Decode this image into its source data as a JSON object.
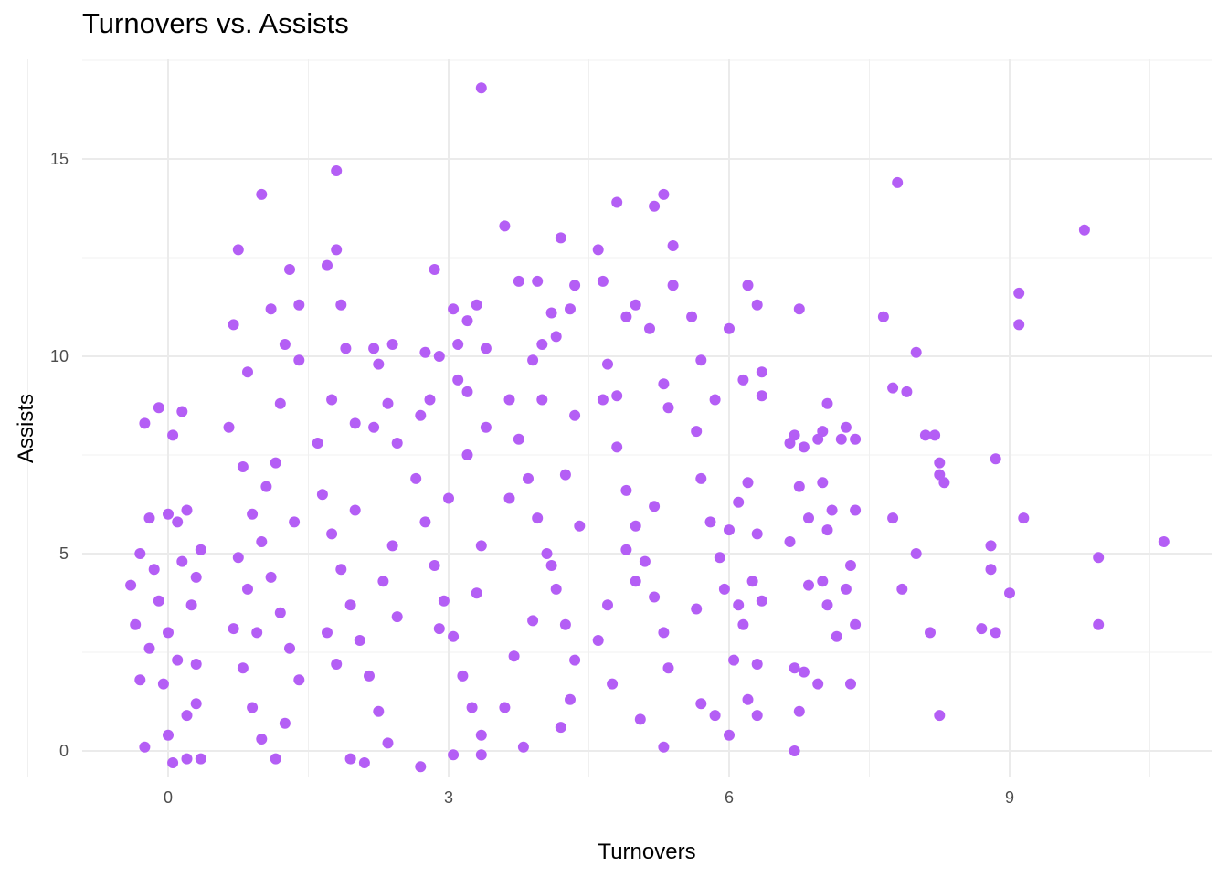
{
  "chart_data": {
    "type": "scatter",
    "title": "Turnovers vs. Assists",
    "xlabel": "Turnovers",
    "ylabel": "Assists",
    "xlim": [
      -0.9,
      10.9
    ],
    "ylim": [
      -0.9,
      17.5
    ],
    "x_ticks": [
      0,
      3,
      6,
      9
    ],
    "x_tick_labels": [
      "0",
      "3",
      "6",
      "9"
    ],
    "y_ticks": [
      0,
      5,
      10,
      15
    ],
    "y_tick_labels": [
      "0",
      "5",
      "10",
      "15"
    ],
    "grid": true,
    "point_color": "#B45EF5",
    "points": [
      [
        -0.4,
        4.2
      ],
      [
        -0.3,
        5.0
      ],
      [
        -0.35,
        3.2
      ],
      [
        -0.25,
        8.3
      ],
      [
        -0.1,
        8.7
      ],
      [
        0.05,
        8.0
      ],
      [
        0.15,
        8.6
      ],
      [
        -0.2,
        5.9
      ],
      [
        0.1,
        5.8
      ],
      [
        0.2,
        6.1
      ],
      [
        -0.3,
        1.8
      ],
      [
        -0.25,
        0.1
      ],
      [
        0.0,
        0.4
      ],
      [
        0.05,
        -0.3
      ],
      [
        0.2,
        -0.2
      ],
      [
        0.35,
        -0.2
      ],
      [
        0.3,
        1.2
      ],
      [
        0.1,
        2.3
      ],
      [
        -0.1,
        3.8
      ],
      [
        0.15,
        4.8
      ],
      [
        0.3,
        4.4
      ],
      [
        0.25,
        3.7
      ],
      [
        0.0,
        3.0
      ],
      [
        -0.2,
        2.6
      ],
      [
        -0.05,
        1.7
      ],
      [
        0.2,
        0.9
      ],
      [
        0.35,
        5.1
      ],
      [
        0.0,
        6.0
      ],
      [
        -0.15,
        4.6
      ],
      [
        0.3,
        2.2
      ],
      [
        0.7,
        10.8
      ],
      [
        0.75,
        12.7
      ],
      [
        1.0,
        14.1
      ],
      [
        1.1,
        11.2
      ],
      [
        0.85,
        9.6
      ],
      [
        1.2,
        8.8
      ],
      [
        1.25,
        10.3
      ],
      [
        1.3,
        12.2
      ],
      [
        1.4,
        11.3
      ],
      [
        0.65,
        8.2
      ],
      [
        0.8,
        7.2
      ],
      [
        0.9,
        6.0
      ],
      [
        1.0,
        5.3
      ],
      [
        1.1,
        4.4
      ],
      [
        1.2,
        3.5
      ],
      [
        1.3,
        2.6
      ],
      [
        1.4,
        1.8
      ],
      [
        0.7,
        3.1
      ],
      [
        0.8,
        2.1
      ],
      [
        0.9,
        1.1
      ],
      [
        1.0,
        0.3
      ],
      [
        1.15,
        -0.2
      ],
      [
        1.25,
        0.7
      ],
      [
        0.75,
        4.9
      ],
      [
        0.85,
        4.1
      ],
      [
        0.95,
        3.0
      ],
      [
        1.05,
        6.7
      ],
      [
        1.15,
        7.3
      ],
      [
        1.35,
        5.8
      ],
      [
        1.4,
        9.9
      ],
      [
        1.7,
        12.3
      ],
      [
        1.8,
        14.7
      ],
      [
        1.85,
        11.3
      ],
      [
        1.8,
        12.7
      ],
      [
        1.75,
        8.9
      ],
      [
        1.6,
        7.8
      ],
      [
        1.9,
        10.2
      ],
      [
        2.2,
        10.2
      ],
      [
        2.25,
        9.8
      ],
      [
        2.4,
        10.3
      ],
      [
        1.65,
        6.5
      ],
      [
        1.75,
        5.5
      ],
      [
        1.85,
        4.6
      ],
      [
        1.95,
        3.7
      ],
      [
        2.05,
        2.8
      ],
      [
        2.15,
        1.9
      ],
      [
        2.25,
        1.0
      ],
      [
        2.35,
        0.2
      ],
      [
        1.95,
        -0.2
      ],
      [
        2.1,
        -0.3
      ],
      [
        2.3,
        4.3
      ],
      [
        2.4,
        5.2
      ],
      [
        2.0,
        6.1
      ],
      [
        1.7,
        3.0
      ],
      [
        1.8,
        2.2
      ],
      [
        2.45,
        7.8
      ],
      [
        2.2,
        8.2
      ],
      [
        2.35,
        8.8
      ],
      [
        2.0,
        8.3
      ],
      [
        2.45,
        3.4
      ],
      [
        2.7,
        8.5
      ],
      [
        2.75,
        10.1
      ],
      [
        2.85,
        12.2
      ],
      [
        2.9,
        10.0
      ],
      [
        3.1,
        10.3
      ],
      [
        3.2,
        10.9
      ],
      [
        3.3,
        11.3
      ],
      [
        3.4,
        10.2
      ],
      [
        3.35,
        16.8
      ],
      [
        3.05,
        11.2
      ],
      [
        2.65,
        6.9
      ],
      [
        2.75,
        5.8
      ],
      [
        2.85,
        4.7
      ],
      [
        2.95,
        3.8
      ],
      [
        3.05,
        2.9
      ],
      [
        3.15,
        1.9
      ],
      [
        3.25,
        1.1
      ],
      [
        3.35,
        0.4
      ],
      [
        2.7,
        -0.4
      ],
      [
        3.05,
        -0.1
      ],
      [
        3.35,
        -0.1
      ],
      [
        3.0,
        6.4
      ],
      [
        3.2,
        7.5
      ],
      [
        3.4,
        8.2
      ],
      [
        3.1,
        9.4
      ],
      [
        3.2,
        9.1
      ],
      [
        2.8,
        8.9
      ],
      [
        3.35,
        5.2
      ],
      [
        3.3,
        4.0
      ],
      [
        2.9,
        3.1
      ],
      [
        3.6,
        13.3
      ],
      [
        3.75,
        11.9
      ],
      [
        3.95,
        11.9
      ],
      [
        4.0,
        10.3
      ],
      [
        4.1,
        11.1
      ],
      [
        4.2,
        13.0
      ],
      [
        4.35,
        11.8
      ],
      [
        4.3,
        11.2
      ],
      [
        4.15,
        10.5
      ],
      [
        3.9,
        9.9
      ],
      [
        3.65,
        8.9
      ],
      [
        3.75,
        7.9
      ],
      [
        3.85,
        6.9
      ],
      [
        3.95,
        5.9
      ],
      [
        4.05,
        5.0
      ],
      [
        4.15,
        4.1
      ],
      [
        4.25,
        3.2
      ],
      [
        4.35,
        2.3
      ],
      [
        4.3,
        1.3
      ],
      [
        4.2,
        0.6
      ],
      [
        3.8,
        0.1
      ],
      [
        3.6,
        1.1
      ],
      [
        3.7,
        2.4
      ],
      [
        3.9,
        3.3
      ],
      [
        4.1,
        4.7
      ],
      [
        4.4,
        5.7
      ],
      [
        4.25,
        7.0
      ],
      [
        4.35,
        8.5
      ],
      [
        4.0,
        8.9
      ],
      [
        3.65,
        6.4
      ],
      [
        4.6,
        12.7
      ],
      [
        4.65,
        11.9
      ],
      [
        4.8,
        13.9
      ],
      [
        4.9,
        11.0
      ],
      [
        5.0,
        11.3
      ],
      [
        5.2,
        13.8
      ],
      [
        5.3,
        14.1
      ],
      [
        5.4,
        12.8
      ],
      [
        5.4,
        11.8
      ],
      [
        5.15,
        10.7
      ],
      [
        4.7,
        9.8
      ],
      [
        4.65,
        8.9
      ],
      [
        4.8,
        7.7
      ],
      [
        4.9,
        6.6
      ],
      [
        5.0,
        5.7
      ],
      [
        5.1,
        4.8
      ],
      [
        5.2,
        3.9
      ],
      [
        5.3,
        3.0
      ],
      [
        5.35,
        2.1
      ],
      [
        5.3,
        0.1
      ],
      [
        5.05,
        0.8
      ],
      [
        4.75,
        1.7
      ],
      [
        4.6,
        2.8
      ],
      [
        4.7,
        3.7
      ],
      [
        4.9,
        5.1
      ],
      [
        5.2,
        6.2
      ],
      [
        5.35,
        8.7
      ],
      [
        5.3,
        9.3
      ],
      [
        4.8,
        9.0
      ],
      [
        5.0,
        4.3
      ],
      [
        5.6,
        11.0
      ],
      [
        5.7,
        9.9
      ],
      [
        5.85,
        8.9
      ],
      [
        6.0,
        10.7
      ],
      [
        6.2,
        11.8
      ],
      [
        6.3,
        11.3
      ],
      [
        6.35,
        9.6
      ],
      [
        6.35,
        9.0
      ],
      [
        6.15,
        9.4
      ],
      [
        5.65,
        8.1
      ],
      [
        5.7,
        6.9
      ],
      [
        5.8,
        5.8
      ],
      [
        5.9,
        4.9
      ],
      [
        6.0,
        5.6
      ],
      [
        6.1,
        6.3
      ],
      [
        6.2,
        6.8
      ],
      [
        6.3,
        5.5
      ],
      [
        6.25,
        4.3
      ],
      [
        6.15,
        3.2
      ],
      [
        6.05,
        2.3
      ],
      [
        6.2,
        1.3
      ],
      [
        6.3,
        0.9
      ],
      [
        6.0,
        0.4
      ],
      [
        5.85,
        0.9
      ],
      [
        5.7,
        1.2
      ],
      [
        5.65,
        3.6
      ],
      [
        5.95,
        4.1
      ],
      [
        6.35,
        3.8
      ],
      [
        6.1,
        3.7
      ],
      [
        6.3,
        2.2
      ],
      [
        6.75,
        11.2
      ],
      [
        6.7,
        8.0
      ],
      [
        6.65,
        7.8
      ],
      [
        6.8,
        7.7
      ],
      [
        6.95,
        7.9
      ],
      [
        7.0,
        8.1
      ],
      [
        7.05,
        8.8
      ],
      [
        7.2,
        7.9
      ],
      [
        7.25,
        8.2
      ],
      [
        7.35,
        7.9
      ],
      [
        6.65,
        5.3
      ],
      [
        6.75,
        6.7
      ],
      [
        6.85,
        5.9
      ],
      [
        7.0,
        6.8
      ],
      [
        7.05,
        5.6
      ],
      [
        7.1,
        6.1
      ],
      [
        7.35,
        6.1
      ],
      [
        7.3,
        4.7
      ],
      [
        7.25,
        4.1
      ],
      [
        7.15,
        2.9
      ],
      [
        6.7,
        2.1
      ],
      [
        6.7,
        0.0
      ],
      [
        6.75,
        1.0
      ],
      [
        6.8,
        2.0
      ],
      [
        6.95,
        1.7
      ],
      [
        7.0,
        4.3
      ],
      [
        6.85,
        4.2
      ],
      [
        7.3,
        1.7
      ],
      [
        7.35,
        3.2
      ],
      [
        7.05,
        3.7
      ],
      [
        7.65,
        11.0
      ],
      [
        7.8,
        14.4
      ],
      [
        7.75,
        9.2
      ],
      [
        7.9,
        9.1
      ],
      [
        8.0,
        10.1
      ],
      [
        8.1,
        8.0
      ],
      [
        8.2,
        8.0
      ],
      [
        8.25,
        7.3
      ],
      [
        8.3,
        6.8
      ],
      [
        8.25,
        7.0
      ],
      [
        7.75,
        5.9
      ],
      [
        8.0,
        5.0
      ],
      [
        7.85,
        4.1
      ],
      [
        8.15,
        3.0
      ],
      [
        8.25,
        0.9
      ],
      [
        8.7,
        3.1
      ],
      [
        8.85,
        3.0
      ],
      [
        8.8,
        4.6
      ],
      [
        8.8,
        5.2
      ],
      [
        8.85,
        7.4
      ],
      [
        9.0,
        4.0
      ],
      [
        9.15,
        5.9
      ],
      [
        9.1,
        10.8
      ],
      [
        9.1,
        11.6
      ],
      [
        9.8,
        13.2
      ],
      [
        9.95,
        3.2
      ],
      [
        9.95,
        4.9
      ],
      [
        10.65,
        5.3
      ]
    ]
  }
}
